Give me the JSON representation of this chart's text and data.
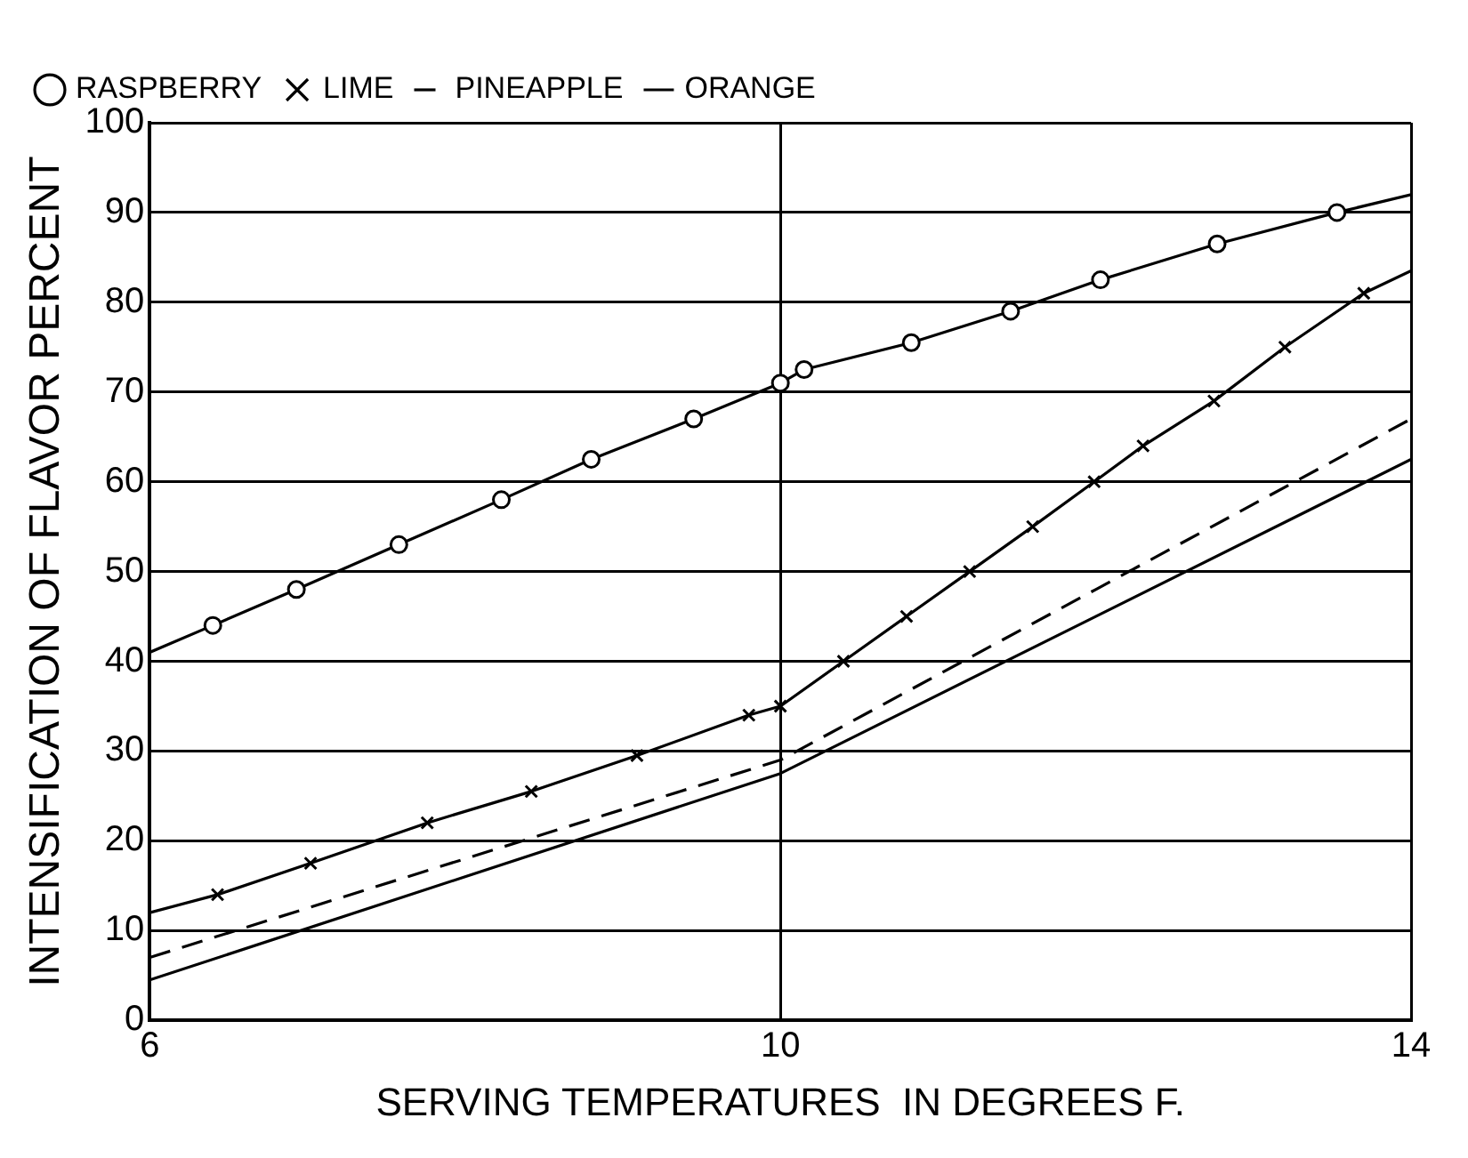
{
  "chart_data": {
    "type": "line",
    "xlabel": "SERVING TEMPERATURES  IN DEGREES F.",
    "ylabel": "INTENSIFICATION OF FLAVOR PERCENT",
    "xlim": [
      6,
      14
    ],
    "xticks": [
      6,
      10,
      14
    ],
    "ylim": [
      0,
      100
    ],
    "yticks": [
      0,
      10,
      20,
      30,
      40,
      50,
      60,
      70,
      80,
      90,
      100
    ],
    "grid": true,
    "legend": "top left",
    "series": [
      {
        "name": "RASPBERRY",
        "color": "#000000",
        "marker": "circle",
        "line_style": "solid",
        "x": [
          6,
          6.4,
          6.93,
          7.58,
          8.23,
          8.8,
          9.45,
          10,
          10.15,
          10.83,
          11.46,
          12.03,
          12.77,
          13.53,
          14
        ],
        "values": [
          41,
          44,
          48,
          53,
          58,
          62.5,
          67,
          71,
          72.5,
          75.5,
          79,
          82.5,
          86.5,
          90,
          92
        ]
      },
      {
        "name": "LIME",
        "color": "#000000",
        "marker": "cross",
        "line_style": "solid",
        "x": [
          6,
          6.43,
          7.02,
          7.76,
          8.42,
          9.09,
          9.8,
          10,
          10.4,
          10.8,
          11.2,
          11.6,
          11.99,
          12.3,
          12.75,
          13.2,
          13.7,
          14
        ],
        "values": [
          12,
          14,
          17.5,
          22,
          25.5,
          29.5,
          34,
          35,
          40,
          45,
          50,
          55,
          60,
          64,
          69,
          75,
          81,
          83.5
        ]
      },
      {
        "name": "PINEAPPLE",
        "color": "#000000",
        "marker": "none",
        "line_style": "dashed",
        "x": [
          6,
          8,
          10,
          12,
          14
        ],
        "values": [
          7,
          18,
          29,
          48,
          67
        ]
      },
      {
        "name": "ORANGE",
        "color": "#000000",
        "marker": "none",
        "line_style": "solid",
        "x": [
          6,
          8,
          10,
          12,
          14
        ],
        "values": [
          4.5,
          16,
          27.5,
          45,
          62.5
        ]
      }
    ]
  }
}
